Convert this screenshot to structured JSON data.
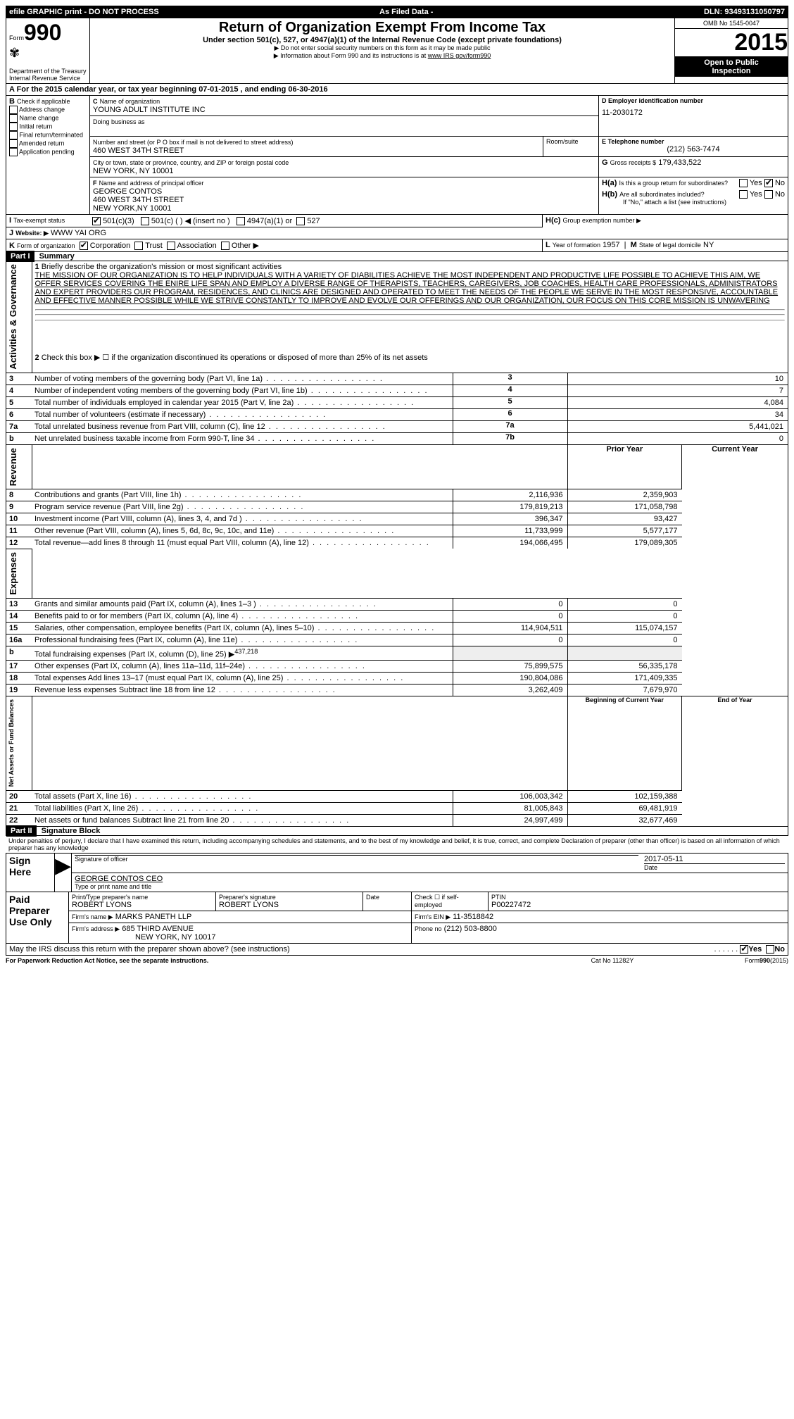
{
  "topbar": {
    "left": "efile GRAPHIC print - DO NOT PROCESS",
    "mid": "As Filed Data -",
    "dln_label": "DLN:",
    "dln": "93493131050797"
  },
  "header": {
    "form_word": "Form",
    "form_num": "990",
    "dept1": "Department of the Treasury",
    "dept2": "Internal Revenue Service",
    "title": "Return of Organization Exempt From Income Tax",
    "subtitle": "Under section 501(c), 527, or 4947(a)(1) of the Internal Revenue Code (except private foundations)",
    "note1": "Do not enter social security numbers on this form as it may be made public",
    "note2": "Information about Form 990 and its instructions is at",
    "note2_link": "www IRS gov/form990",
    "omb": "OMB No 1545-0047",
    "year": "2015",
    "inspect1": "Open to Public",
    "inspect2": "Inspection"
  },
  "sectionA": {
    "label": "A  For the 2015 calendar year, or tax year beginning 07-01-2015   , and ending 06-30-2016"
  },
  "sectionB": {
    "label": "B",
    "check_label": "Check if applicable",
    "opts": [
      "Address change",
      "Name change",
      "Initial return",
      "Final return/terminated",
      "Amended return",
      "Application pending"
    ]
  },
  "sectionC": {
    "c_label": "C",
    "name_label": "Name of organization",
    "name": "YOUNG ADULT INSTITUTE INC",
    "dba_label": "Doing business as",
    "dba": "",
    "street_label": "Number and street (or P O  box if mail is not delivered to street address)",
    "room_label": "Room/suite",
    "street": "460 WEST 34TH STREET",
    "city_label": "City or town, state or province, country, and ZIP or foreign postal code",
    "city": "NEW YORK, NY  10001",
    "f_label": "F",
    "officer_label": "Name and address of principal officer",
    "officer_name": "GEORGE CONTOS",
    "officer_street": "460 WEST 34TH STREET",
    "officer_city": "NEW YORK,NY 10001"
  },
  "sectionD": {
    "label": "D Employer identification number",
    "value": "11-2030172"
  },
  "sectionE": {
    "label": "E Telephone number",
    "value": "(212) 563-7474"
  },
  "sectionG": {
    "label": "G",
    "text": "Gross receipts $",
    "value": "179,433,522"
  },
  "sectionH": {
    "ha_label": "H(a)",
    "ha_text": "Is this a group return for subordinates?",
    "ha_no": "No",
    "hb_label": "H(b)",
    "hb_text": "Are all subordinates included?",
    "hb_note": "If \"No,\" attach a list  (see instructions)",
    "hc_label": "H(c)",
    "hc_text": "Group exemption number ▶",
    "yes": "Yes",
    "no": "No"
  },
  "sectionI": {
    "label": "I",
    "text": "Tax-exempt status",
    "opt1": "501(c)(3)",
    "opt2": "501(c) (  ) ◀ (insert no )",
    "opt3": "4947(a)(1) or",
    "opt4": "527"
  },
  "sectionJ": {
    "label": "J",
    "text": "Website: ▶",
    "value": "WWW YAI ORG"
  },
  "sectionK": {
    "label": "K",
    "text": "Form of organization",
    "opts": [
      "Corporation",
      "Trust",
      "Association",
      "Other ▶"
    ]
  },
  "sectionL": {
    "label": "L",
    "text": "Year of formation",
    "value": "1957"
  },
  "sectionM": {
    "label": "M",
    "text": "State of legal domicile",
    "value": "NY"
  },
  "part1": {
    "header": "Part I",
    "title": "Summary",
    "q1_label": "1",
    "q1_text": "Briefly describe the organization's mission or most significant activities",
    "q1_body": "THE MISSION OF OUR ORGANIZATION IS TO HELP INDIVIDUALS WITH A VARIETY OF DIABILITIES ACHIEVE THE MOST INDEPENDENT AND PRODUCTIVE LIFE POSSIBLE TO ACHIEVE THIS AIM, WE OFFER SERVICES COVERING THE ENIRE LIFE SPAN AND EMPLOY A DIVERSE RANGE OF THERAPISTS, TEACHERS, CAREGIVERS, JOB COACHES, HEALTH CARE PROFESSIONALS, ADMINISTRATORS AND EXPERT PROVIDERS OUR PROGRAM, RESIDENCES, AND CLINICS ARE DESIGNED AND OPERATED TO MEET THE NEEDS OF THE PEOPLE WE SERVE IN THE MOST RESPONSIVE, ACCOUNTABLE AND EFFECTIVE MANNER POSSIBLE WHILE WE STRIVE CONSTANTLY TO IMPROVE AND EVOLVE OUR OFFERINGS AND OUR ORGANIZATION, OUR FOCUS ON THIS CORE MISSION IS UNWAVERING",
    "q2_label": "2",
    "q2_text": "Check this box ▶ ☐ if the organization discontinued its operations or disposed of more than 25% of its net assets",
    "lines_simple": [
      {
        "n": "3",
        "t": "Number of voting members of the governing body (Part VI, line 1a)",
        "box": "3",
        "v": "10"
      },
      {
        "n": "4",
        "t": "Number of independent voting members of the governing body (Part VI, line 1b)",
        "box": "4",
        "v": "7"
      },
      {
        "n": "5",
        "t": "Total number of individuals employed in calendar year 2015 (Part V, line 2a)",
        "box": "5",
        "v": "4,084"
      },
      {
        "n": "6",
        "t": "Total number of volunteers (estimate if necessary)",
        "box": "6",
        "v": "34"
      },
      {
        "n": "7a",
        "t": "Total unrelated business revenue from Part VIII, column (C), line 12",
        "box": "7a",
        "v": "5,441,021"
      },
      {
        "n": "b",
        "t": "Net unrelated business taxable income from Form 990-T, line 34",
        "box": "7b",
        "v": "0"
      }
    ],
    "col_prior": "Prior Year",
    "col_current": "Current Year",
    "revenue": [
      {
        "n": "8",
        "t": "Contributions and grants (Part VIII, line 1h)",
        "p": "2,116,936",
        "c": "2,359,903"
      },
      {
        "n": "9",
        "t": "Program service revenue (Part VIII, line 2g)",
        "p": "179,819,213",
        "c": "171,058,798"
      },
      {
        "n": "10",
        "t": "Investment income (Part VIII, column (A), lines 3, 4, and 7d )",
        "p": "396,347",
        "c": "93,427"
      },
      {
        "n": "11",
        "t": "Other revenue (Part VIII, column (A), lines 5, 6d, 8c, 9c, 10c, and 11e)",
        "p": "11,733,999",
        "c": "5,577,177"
      },
      {
        "n": "12",
        "t": "Total revenue—add lines 8 through 11 (must equal Part VIII, column (A), line 12)",
        "p": "194,066,495",
        "c": "179,089,305"
      }
    ],
    "expenses": [
      {
        "n": "13",
        "t": "Grants and similar amounts paid (Part IX, column (A), lines 1–3 )",
        "p": "0",
        "c": "0"
      },
      {
        "n": "14",
        "t": "Benefits paid to or for members (Part IX, column (A), line 4)",
        "p": "0",
        "c": "0"
      },
      {
        "n": "15",
        "t": "Salaries, other compensation, employee benefits (Part IX, column (A), lines 5–10)",
        "p": "114,904,511",
        "c": "115,074,157"
      },
      {
        "n": "16a",
        "t": "Professional fundraising fees (Part IX, column (A), line 11e)",
        "p": "0",
        "c": "0"
      }
    ],
    "line16b_n": "b",
    "line16b_t": "Total fundraising expenses (Part IX, column (D), line 25) ▶",
    "line16b_v": "437,218",
    "expenses2": [
      {
        "n": "17",
        "t": "Other expenses (Part IX, column (A), lines 11a–11d, 11f–24e)",
        "p": "75,899,575",
        "c": "56,335,178"
      },
      {
        "n": "18",
        "t": "Total expenses  Add lines 13–17 (must equal Part IX, column (A), line 25)",
        "p": "190,804,086",
        "c": "171,409,335"
      },
      {
        "n": "19",
        "t": "Revenue less expenses  Subtract line 18 from line 12",
        "p": "3,262,409",
        "c": "7,679,970"
      }
    ],
    "col_begin": "Beginning of Current Year",
    "col_end": "End of Year",
    "netassets": [
      {
        "n": "20",
        "t": "Total assets (Part X, line 16)",
        "p": "106,003,342",
        "c": "102,159,388"
      },
      {
        "n": "21",
        "t": "Total liabilities (Part X, line 26)",
        "p": "81,005,843",
        "c": "69,481,919"
      },
      {
        "n": "22",
        "t": "Net assets or fund balances  Subtract line 21 from line 20",
        "p": "24,997,499",
        "c": "32,677,469"
      }
    ],
    "vlabels": {
      "gov": "Activities & Governance",
      "rev": "Revenue",
      "exp": "Expenses",
      "net": "Net Assets or Fund Balances"
    }
  },
  "part2": {
    "header": "Part II",
    "title": "Signature Block",
    "perjury": "Under penalties of perjury, I declare that I have examined this return, including accompanying schedules and statements, and to the best of my knowledge and belief, it is true, correct, and complete  Declaration of preparer (other than officer) is based on all information of which preparer has any knowledge",
    "sign_here": "Sign Here",
    "sig_label": "Signature of officer",
    "date_label": "Date",
    "date": "2017-05-11",
    "name_title": "GEORGE CONTOS CEO",
    "name_title_label": "Type or print name and title",
    "paid": "Paid Preparer Use Only",
    "prep_name_label": "Print/Type preparer's name",
    "prep_name": "ROBERT LYONS",
    "prep_sig_label": "Preparer's signature",
    "prep_sig": "ROBERT LYONS",
    "prep_date_label": "Date",
    "self_emp": "Check ☐ if self-employed",
    "ptin_label": "PTIN",
    "ptin": "P00227472",
    "firm_name_label": "Firm's name    ▶",
    "firm_name": "MARKS PANETH LLP",
    "firm_ein_label": "Firm's EIN ▶",
    "firm_ein": "11-3518842",
    "firm_addr_label": "Firm's address ▶",
    "firm_addr": "685 THIRD AVENUE",
    "firm_city": "NEW YORK, NY  10017",
    "phone_label": "Phone no",
    "phone": "(212) 503-8800",
    "discuss": "May the IRS discuss this return with the preparer shown above? (see instructions)",
    "yes": "Yes",
    "no": "No"
  },
  "footer": {
    "paperwork": "For Paperwork Reduction Act Notice, see the separate instructions.",
    "cat": "Cat No 11282Y",
    "form": "Form",
    "formnum": "990",
    "formyear": "(2015)"
  }
}
